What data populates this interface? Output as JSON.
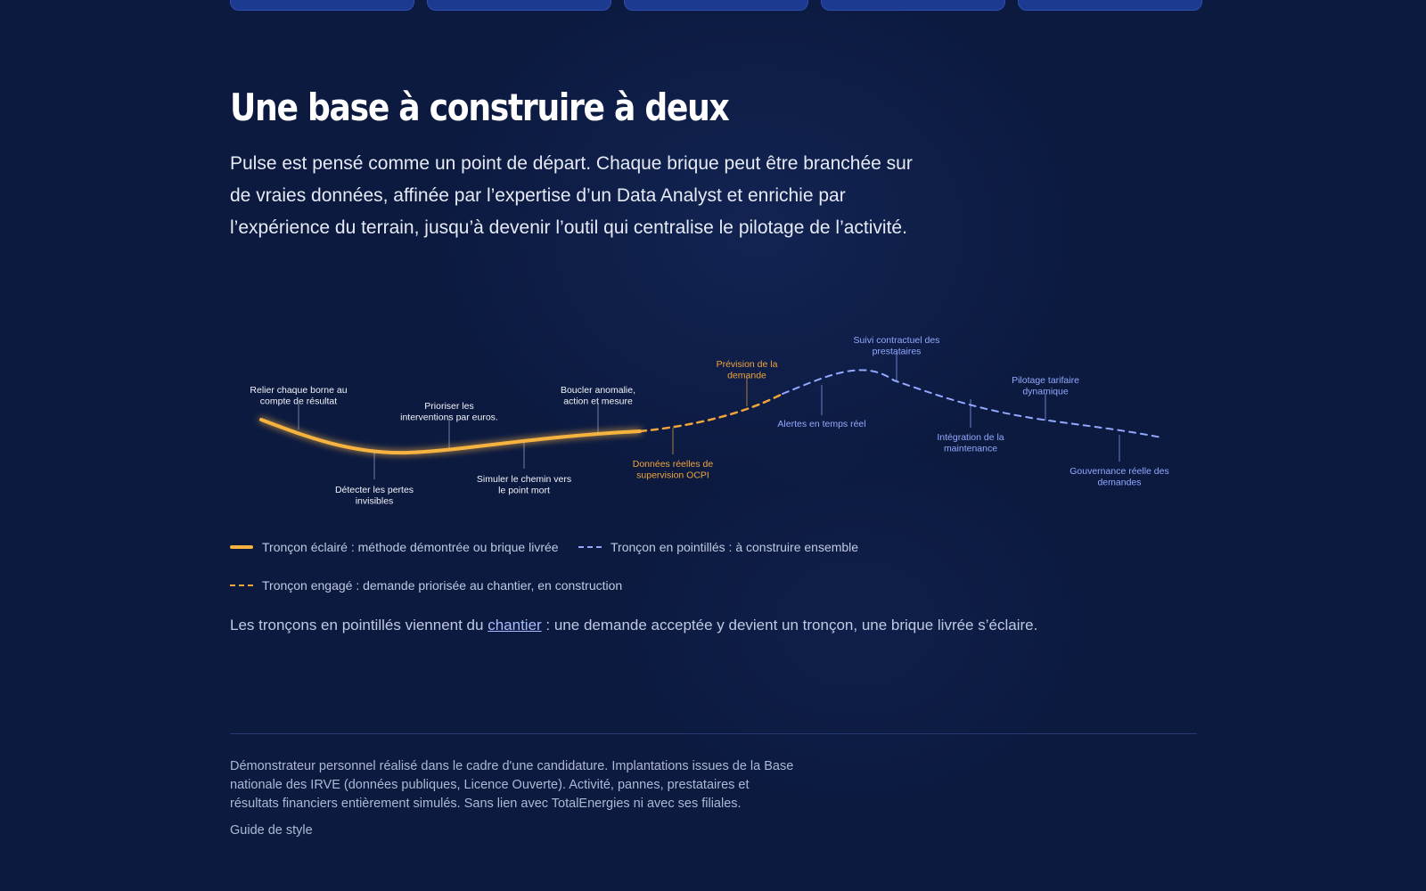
{
  "section": {
    "title": "Une base à construire à deux",
    "intro": "Pulse est pensé comme un point de départ. Chaque brique peut être branchée sur de vraies données, affinée par l’expertise d’un Data Analyst et enrichie par l’expérience du terrain, jusqu’à devenir l’outil qui centralise le pilotage de l’activité."
  },
  "roadmap": {
    "colors": {
      "done": "#f6b33f",
      "engaged": "#f0a53a",
      "todo": "#93a9ff"
    },
    "milestones": [
      {
        "status": "done",
        "label_lines": [
          "Relier chaque borne au",
          "compte de résultat"
        ]
      },
      {
        "status": "done",
        "label_lines": [
          "Détecter les pertes",
          "invisibles"
        ]
      },
      {
        "status": "done",
        "label_lines": [
          "Prioriser les",
          "interventions par euros."
        ]
      },
      {
        "status": "done",
        "label_lines": [
          "Simuler le chemin vers",
          "le point mort"
        ]
      },
      {
        "status": "done",
        "label_lines": [
          "Boucler anomalie,",
          "action et mesure"
        ]
      },
      {
        "status": "engaged",
        "label_lines": [
          "Données réelles de",
          "supervision OCPI"
        ]
      },
      {
        "status": "engaged",
        "label_lines": [
          "Prévision de la",
          "demande"
        ]
      },
      {
        "status": "todo",
        "label_lines": [
          "Alertes en temps réel"
        ]
      },
      {
        "status": "todo",
        "label_lines": [
          "Suivi contractuel des",
          "prestataires"
        ]
      },
      {
        "status": "todo",
        "label_lines": [
          "Intégration de la",
          "maintenance"
        ]
      },
      {
        "status": "todo",
        "label_lines": [
          "Pilotage tarifaire",
          "dynamique"
        ]
      },
      {
        "status": "todo",
        "label_lines": [
          "Gouvernance réelle des",
          "demandes"
        ]
      }
    ]
  },
  "legend": {
    "done": "Tronçon éclairé : méthode démontrée ou brique livrée",
    "todo": "Tronçon en pointillés : à construire ensemble",
    "engaged": "Tronçon engagé : demande priorisée au chantier, en construction"
  },
  "note": {
    "before": "Les tronçons en pointillés viennent du ",
    "link": "chantier",
    "after": " : une demande acceptée y devient un tronçon, une brique livrée s’éclaire."
  },
  "footer": {
    "disclaimer": "Démonstrateur personnel réalisé dans le cadre d'une candidature. Implantations issues de la Base nationale des IRVE (données publiques, Licence Ouverte). Activité, pannes, prestataires et résultats financiers entièrement simulés. Sans lien avec TotalEnergies ni avec ses filiales.",
    "style_guide": "Guide de style"
  }
}
